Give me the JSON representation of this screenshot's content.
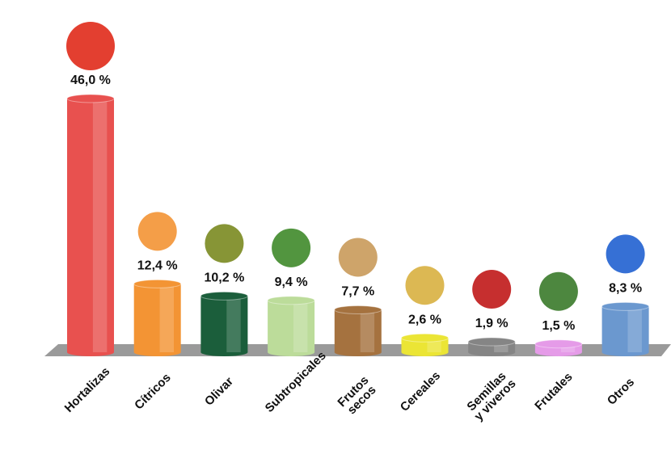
{
  "chart_data": {
    "type": "bar",
    "categories": [
      "Hortalizas",
      "Cítricos",
      "Olivar",
      "Subtropicales",
      "Frutos secos",
      "Cereales",
      "Semillas y viveros",
      "Frutales",
      "Otros"
    ],
    "values": [
      46.0,
      12.4,
      10.2,
      9.4,
      7.7,
      2.6,
      1.9,
      1.5,
      8.3
    ],
    "value_labels": [
      "46,0 %",
      "12,4 %",
      "10,2 %",
      "9,4 %",
      "7,7 %",
      "2,6 %",
      "1,9 %",
      "1,5 %",
      "8,3 %"
    ],
    "colors": [
      "#e8514f",
      "#f39434",
      "#1b5e3b",
      "#bcdc9a",
      "#a5723f",
      "#ebe535",
      "#858585",
      "#e59be8",
      "#6b98cf"
    ]
  }
}
